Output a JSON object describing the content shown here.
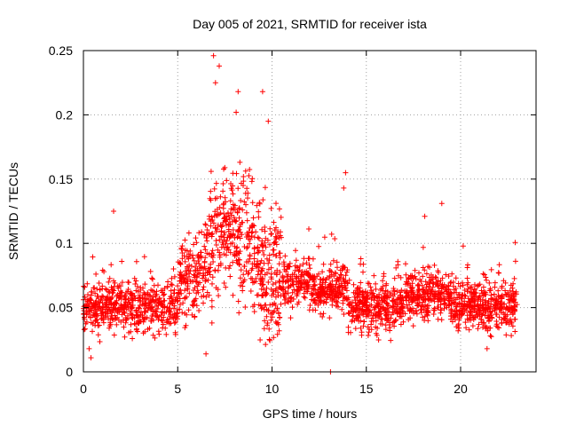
{
  "chart_data": {
    "type": "scatter",
    "title": "Day 005 of 2021, SRMTID for receiver ista",
    "xlabel": "GPS time / hours",
    "ylabel": "SRMTID / TECUs",
    "xlim": [
      0,
      24
    ],
    "ylim": [
      0,
      0.25
    ],
    "x_ticks": [
      "0",
      "5",
      "10",
      "15",
      "20"
    ],
    "y_ticks": [
      "0",
      "0.05",
      "0.1",
      "0.15",
      "0.2",
      "0.25"
    ],
    "grid": true,
    "marker": "+",
    "marker_color": "#ff0000",
    "x_range_data": [
      0,
      23
    ],
    "highlight_points": [
      {
        "x": 6.9,
        "y": 0.246
      },
      {
        "x": 7.2,
        "y": 0.238
      },
      {
        "x": 7.0,
        "y": 0.225
      },
      {
        "x": 8.2,
        "y": 0.218
      },
      {
        "x": 9.5,
        "y": 0.218
      },
      {
        "x": 8.1,
        "y": 0.202
      },
      {
        "x": 9.8,
        "y": 0.195
      },
      {
        "x": 13.9,
        "y": 0.155
      },
      {
        "x": 13.8,
        "y": 0.143
      },
      {
        "x": 1.6,
        "y": 0.125
      },
      {
        "x": 19.0,
        "y": 0.131
      },
      {
        "x": 18.1,
        "y": 0.121
      },
      {
        "x": 0.4,
        "y": 0.011
      },
      {
        "x": 0.3,
        "y": 0.018
      },
      {
        "x": 6.5,
        "y": 0.014
      },
      {
        "x": 21.4,
        "y": 0.018
      },
      {
        "x": 13.1,
        "y": 0.0
      }
    ]
  }
}
